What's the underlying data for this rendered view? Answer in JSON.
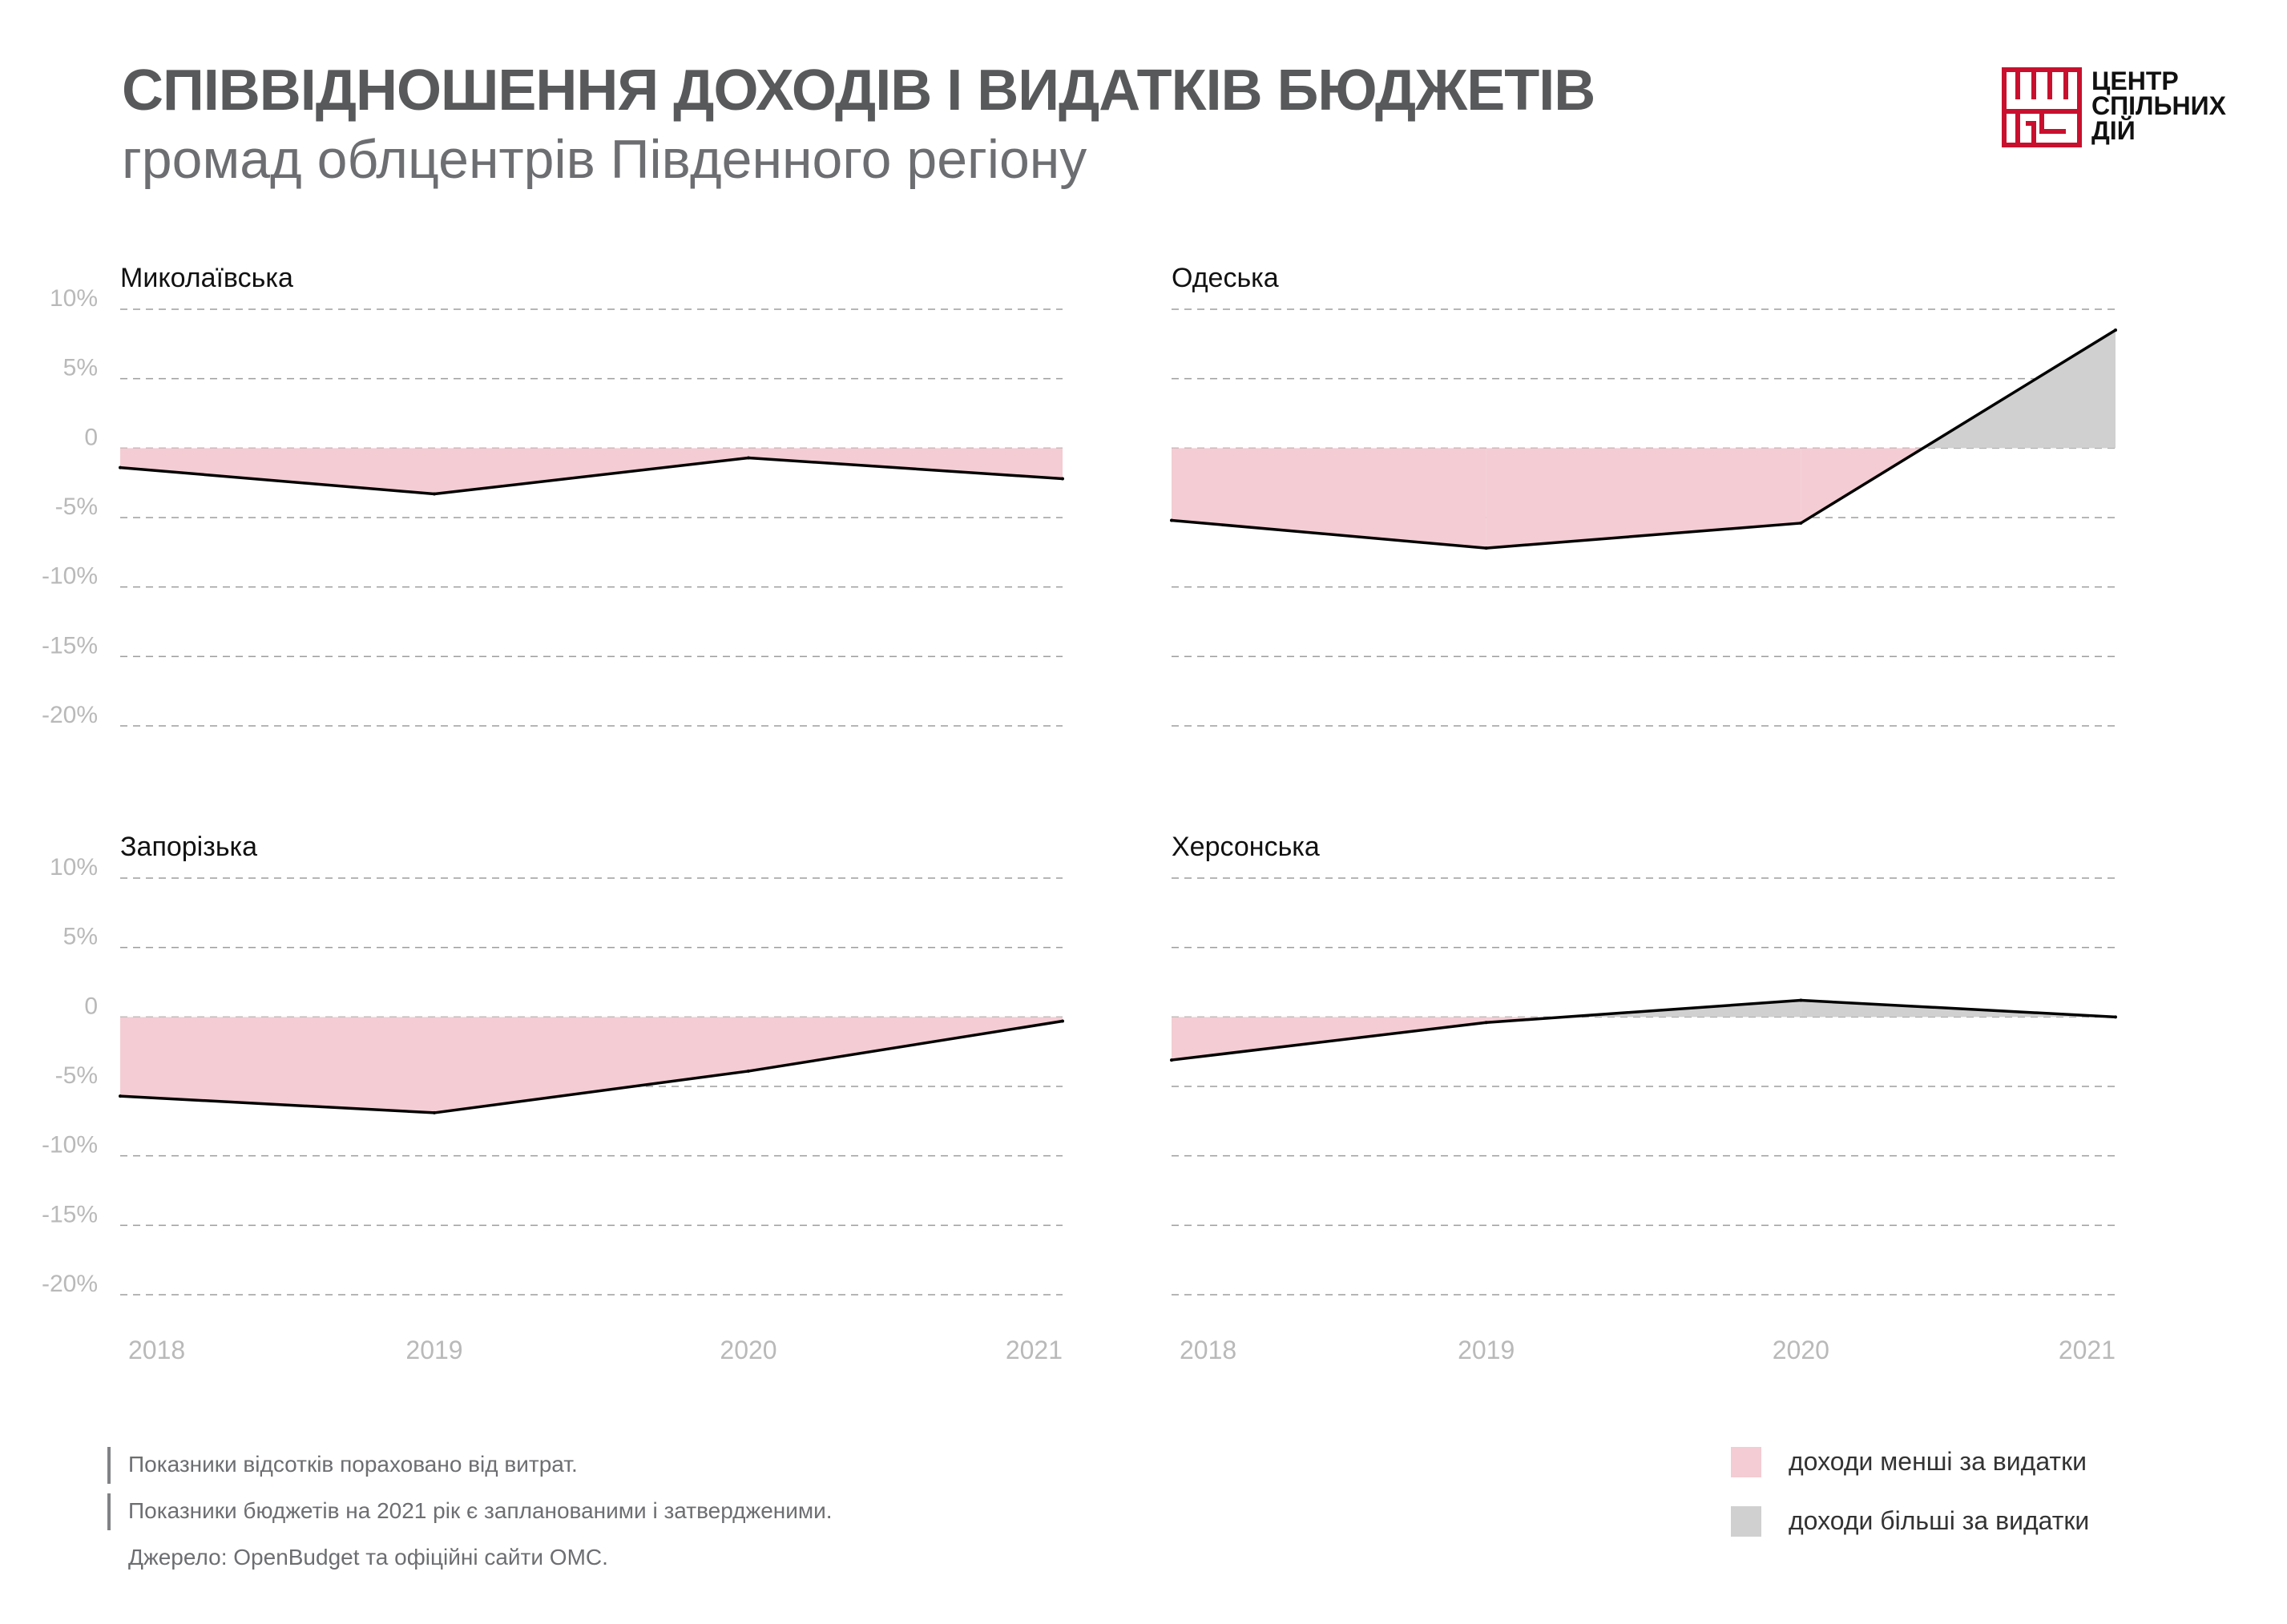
{
  "header": {
    "title": "СПІВВІДНОШЕННЯ ДОХОДІВ І ВИДАТКІВ БЮДЖЕТІВ",
    "subtitle": "громад облцентрів Південного регіону"
  },
  "logo": {
    "lines": [
      "ЦЕНТР",
      "СПІЛЬНИХ",
      "ДІЙ"
    ],
    "color": "#c8102e",
    "icon": "geometric-logo-mark"
  },
  "colors": {
    "deficit": "#f4ccd3",
    "surplus": "#d0d0d0",
    "line": "#000000",
    "grid": "#9d9d9d",
    "tick": "#b9b9b9"
  },
  "chart_data": [
    {
      "type": "area",
      "title": "Миколаївська",
      "x": [
        "2018",
        "2019",
        "2020",
        "2021"
      ],
      "values": [
        -1.4,
        -3.3,
        -0.7,
        -2.2
      ],
      "yticks": [
        "10%",
        "5%",
        "0",
        "-5%",
        "-10%",
        "-15%",
        "-20%"
      ],
      "ylim": [
        -20,
        10
      ],
      "grid": true
    },
    {
      "type": "area",
      "title": "Одеська",
      "x": [
        "2018",
        "2019",
        "2020",
        "2021"
      ],
      "values": [
        -5.2,
        -7.2,
        -5.4,
        8.5
      ],
      "yticks": [],
      "ylim": [
        -20,
        10
      ],
      "grid": true
    },
    {
      "type": "area",
      "title": "Запорізька",
      "x": [
        "2018",
        "2019",
        "2020",
        "2021"
      ],
      "values": [
        -5.7,
        -6.9,
        -3.9,
        -0.3
      ],
      "yticks": [
        "10%",
        "5%",
        "0",
        "-5%",
        "-10%",
        "-15%",
        "-20%"
      ],
      "ylim": [
        -20,
        10
      ],
      "grid": true
    },
    {
      "type": "area",
      "title": "Херсонська",
      "x": [
        "2018",
        "2019",
        "2020",
        "2021"
      ],
      "values": [
        -3.1,
        -0.4,
        1.2,
        0.0
      ],
      "yticks": [],
      "ylim": [
        -20,
        10
      ],
      "grid": true
    }
  ],
  "notes": [
    "Показники відсотків пораховано від витрат.",
    "Показники бюджетів на 2021 рік є запланованими і затвердженими.",
    "Джерело: OpenBudget та офіційні сайти ОМС."
  ],
  "legend": [
    {
      "label": "доходи менші за видатки",
      "color": "#f4ccd3"
    },
    {
      "label": "доходи більші за видатки",
      "color": "#d0d0d0"
    }
  ]
}
